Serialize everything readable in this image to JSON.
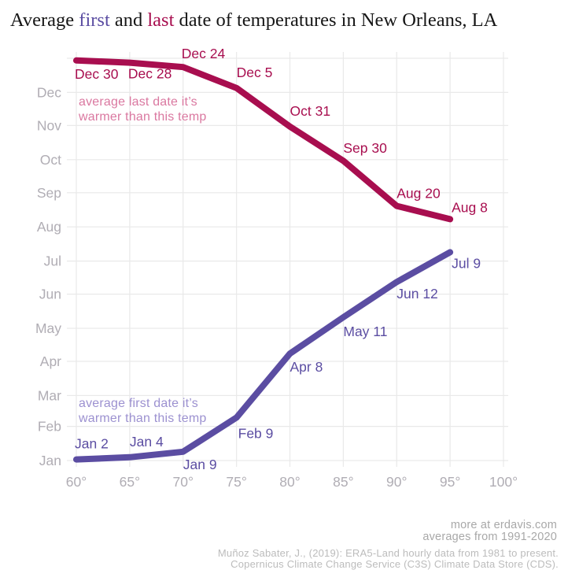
{
  "title": {
    "part1": "Average ",
    "first_word": "first",
    "part2": " and ",
    "last_word": "last",
    "part3": " date of temperatures in New Orleans, LA"
  },
  "colors": {
    "first_series": "#5b4da2",
    "last_series": "#a80e4f",
    "first_annotation": "#9c91d0",
    "last_annotation": "#da78a0",
    "axis_text": "#b0adb4",
    "gridline": "#e9e9e9",
    "title_text": "#161616",
    "footer_text": "#a8a8a8",
    "source_text": "#bcbcbc",
    "background": "#ffffff"
  },
  "chart_data": {
    "type": "line",
    "title": "Average first and last date of temperatures in New Orleans, LA",
    "x_axis": {
      "tick_labels": [
        "60°",
        "65°",
        "70°",
        "75°",
        "80°",
        "85°",
        "90°",
        "95°",
        "100°"
      ],
      "tick_values": [
        60,
        65,
        70,
        75,
        80,
        85,
        90,
        95,
        100
      ],
      "unit": "degrees Fahrenheit"
    },
    "y_axis": {
      "type": "date",
      "tick_labels": [
        "Jan",
        "Feb",
        "Mar",
        "Apr",
        "May",
        "Jun",
        "Jul",
        "Aug",
        "Sep",
        "Oct",
        "Nov",
        "Dec"
      ],
      "grid": true
    },
    "series": [
      {
        "id": "last_date",
        "name": "average last date it's warmer than this temp",
        "color": "#a80e4f",
        "annotation": [
          "average last date it’s",
          "warmer than this temp"
        ],
        "points": [
          {
            "temp": 60,
            "date": "Dec 30"
          },
          {
            "temp": 65,
            "date": "Dec 28"
          },
          {
            "temp": 70,
            "date": "Dec 24"
          },
          {
            "temp": 75,
            "date": "Dec 5"
          },
          {
            "temp": 80,
            "date": "Oct 31"
          },
          {
            "temp": 85,
            "date": "Sep 30"
          },
          {
            "temp": 90,
            "date": "Aug 20"
          },
          {
            "temp": 95,
            "date": "Aug 8"
          }
        ]
      },
      {
        "id": "first_date",
        "name": "average first date it's warmer than this temp",
        "color": "#5b4da2",
        "annotation": [
          "average first date it’s",
          "warmer than this temp"
        ],
        "points": [
          {
            "temp": 60,
            "date": "Jan 2"
          },
          {
            "temp": 65,
            "date": "Jan 4"
          },
          {
            "temp": 70,
            "date": "Jan 9"
          },
          {
            "temp": 75,
            "date": "Feb 9"
          },
          {
            "temp": 80,
            "date": "Apr 8"
          },
          {
            "temp": 85,
            "date": "May 11"
          },
          {
            "temp": 90,
            "date": "Jun 12"
          },
          {
            "temp": 95,
            "date": "Jul 9"
          }
        ]
      }
    ]
  },
  "footer": {
    "credit_line1": "more at erdavis.com",
    "credit_line2": "averages from 1991-2020",
    "source_line1": "Muñoz Sabater, J., (2019): ERA5-Land hourly data from 1981 to present.",
    "source_line2": "Copernicus Climate Change Service (C3S) Climate Data Store (CDS)."
  }
}
